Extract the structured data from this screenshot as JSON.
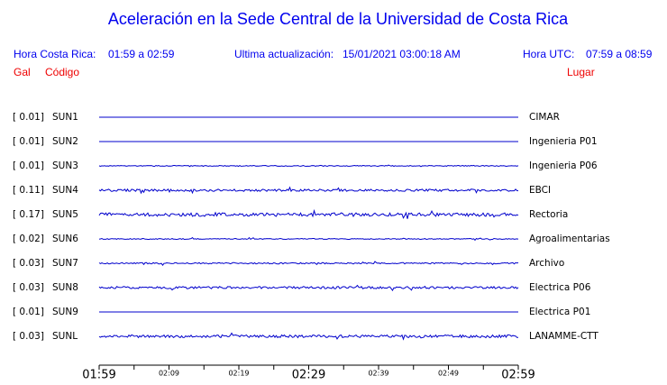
{
  "header": {
    "title": "Aceleración en la Sede Central de la Universidad de Costa Rica",
    "local_label": "Hora Costa Rica:",
    "local_range": "01:59 a 02:59",
    "update_label": "Ultima actualización:",
    "update_value": "15/01/2021 03:00:18 AM",
    "utc_label": "Hora UTC:",
    "utc_range": "07:59 a 08:59"
  },
  "columns": {
    "gal": "Gal",
    "code": "Código",
    "place": "Lugar"
  },
  "stations": [
    {
      "gal": "[  0.01]",
      "code": "SUN1",
      "place": "CIMAR"
    },
    {
      "gal": "[  0.01]",
      "code": "SUN2",
      "place": "Ingenieria P01"
    },
    {
      "gal": "[  0.01]",
      "code": "SUN3",
      "place": "Ingenieria P06"
    },
    {
      "gal": "[  0.11]",
      "code": "SUN4",
      "place": "EBCI"
    },
    {
      "gal": "[  0.17]",
      "code": "SUN5",
      "place": "Rectoria"
    },
    {
      "gal": "[  0.02]",
      "code": "SUN6",
      "place": "Agroalimentarias"
    },
    {
      "gal": "[  0.03]",
      "code": "SUN7",
      "place": "Archivo"
    },
    {
      "gal": "[  0.03]",
      "code": "SUN8",
      "place": "Electrica P06"
    },
    {
      "gal": "[  0.01]",
      "code": "SUN9",
      "place": "Electrica P01"
    },
    {
      "gal": "[  0.03]",
      "code": "SUNL",
      "place": "LANAMME-CTT"
    }
  ],
  "time_axis": {
    "labels": [
      "01:59",
      "02:09",
      "02:19",
      "02:29",
      "02:39",
      "02:49",
      "02:59"
    ]
  }
}
